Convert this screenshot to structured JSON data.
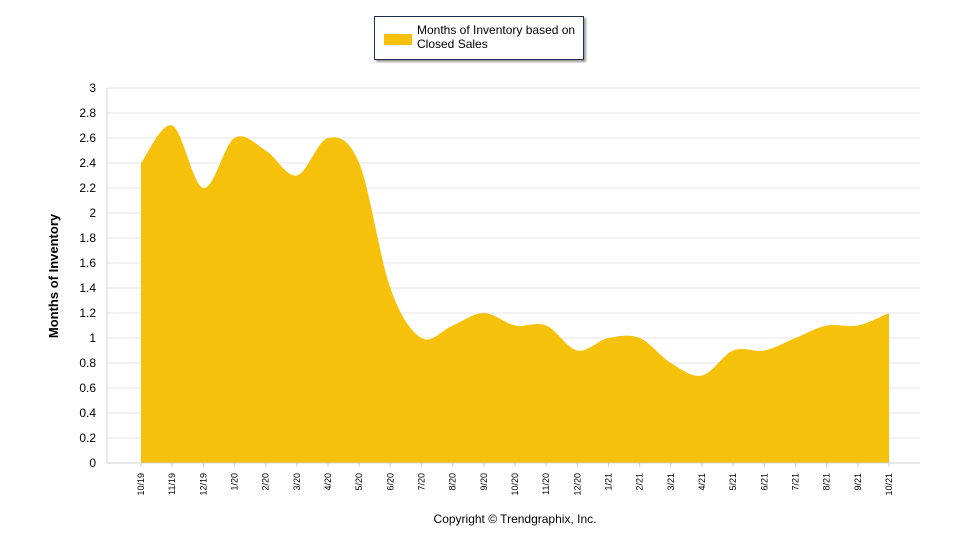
{
  "chart_data": {
    "type": "area",
    "categories": [
      "10/19",
      "11/19",
      "12/19",
      "1/20",
      "2/20",
      "3/20",
      "4/20",
      "5/20",
      "6/20",
      "7/20",
      "8/20",
      "9/20",
      "10/20",
      "11/20",
      "12/20",
      "1/21",
      "2/21",
      "3/21",
      "4/21",
      "5/21",
      "6/21",
      "7/21",
      "8/21",
      "9/21",
      "10/21"
    ],
    "series": [
      {
        "name": "Months of Inventory based on Closed Sales",
        "values": [
          2.4,
          2.7,
          2.2,
          2.6,
          2.5,
          2.3,
          2.6,
          2.4,
          1.4,
          1.0,
          1.1,
          1.2,
          1.1,
          1.1,
          0.9,
          1.0,
          1.0,
          0.8,
          0.7,
          0.9,
          0.9,
          1.0,
          1.1,
          1.1,
          1.2
        ],
        "color": "#f6c10a"
      }
    ],
    "title": "",
    "xlabel": "",
    "ylabel": "Months of Inventory",
    "ylim": [
      0,
      3
    ],
    "yticks": [
      "0",
      "0.2",
      "0.4",
      "0.6",
      "0.8",
      "1",
      "1.2",
      "1.4",
      "1.6",
      "1.8",
      "2",
      "2.2",
      "2.4",
      "2.6",
      "2.8",
      "3"
    ],
    "grid": true,
    "legend": "top-center"
  },
  "legend": {
    "label": "Months of Inventory based on Closed Sales"
  },
  "footer": {
    "copyright": "Copyright © Trendgraphix, Inc."
  }
}
